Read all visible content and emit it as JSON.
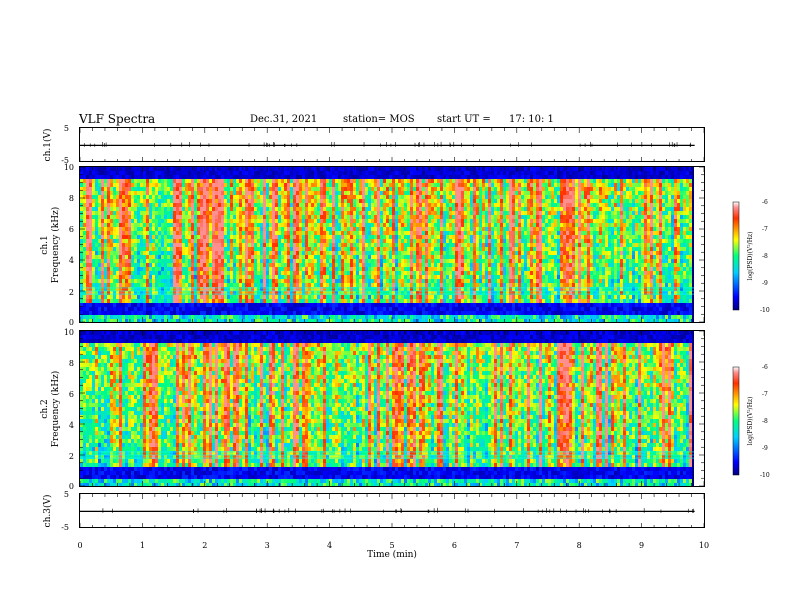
{
  "header": {
    "title": "VLF Spectra",
    "date": "Dec.31, 2021",
    "station": "station= MOS",
    "start_ut_label": "start  UT  =",
    "start_ut_value": "17: 10: 1"
  },
  "chart_data": [
    {
      "type": "line",
      "panel": "ch1-waveform",
      "ylabel": "ch.1(V)",
      "ylim": [
        -5,
        5
      ],
      "yticks": [
        "5",
        "-5"
      ],
      "x": [
        0,
        10
      ],
      "values_approx": [
        -0.1,
        -0.1
      ],
      "color": "#000000"
    },
    {
      "type": "heatmap",
      "panel": "ch1-spectrogram",
      "ylabel": "ch.1\nFrequency (kHz)",
      "ylim": [
        0,
        10
      ],
      "yticks": [
        "0",
        "2",
        "4",
        "6",
        "8",
        "10"
      ],
      "xlim": [
        0,
        10
      ],
      "colorbar": {
        "label": "log(PSD)(V²/Hz)",
        "range": [
          -10,
          -6
        ],
        "ticks": [
          "-6",
          "-7",
          "-8",
          "-9",
          "-10"
        ]
      }
    },
    {
      "type": "heatmap",
      "panel": "ch2-spectrogram",
      "ylabel": "ch.2\nFrequency (kHz)",
      "ylim": [
        0,
        10
      ],
      "yticks": [
        "0",
        "2",
        "4",
        "6",
        "8",
        "10"
      ],
      "xlim": [
        0,
        10
      ],
      "colorbar": {
        "label": "log(PSD)(V²/Hz)",
        "range": [
          -10,
          -6
        ],
        "ticks": [
          "-6",
          "-7",
          "-8",
          "-9",
          "-10"
        ]
      }
    },
    {
      "type": "line",
      "panel": "ch3-waveform",
      "ylabel": "ch.3(V)",
      "ylim": [
        -5,
        5
      ],
      "yticks": [
        "5",
        "-5"
      ],
      "x": [
        0,
        10
      ],
      "values_approx": [
        -0.1,
        -0.1
      ],
      "color": "#000000"
    }
  ],
  "xaxis": {
    "label": "Time  (min)",
    "ticks": [
      "0",
      "1",
      "2",
      "3",
      "4",
      "5",
      "6",
      "7",
      "8",
      "9",
      "10"
    ]
  },
  "colors": {
    "low": "#00007f",
    "mid": "#00ff80",
    "high": "#ff0000",
    "top": "#ffffff"
  }
}
